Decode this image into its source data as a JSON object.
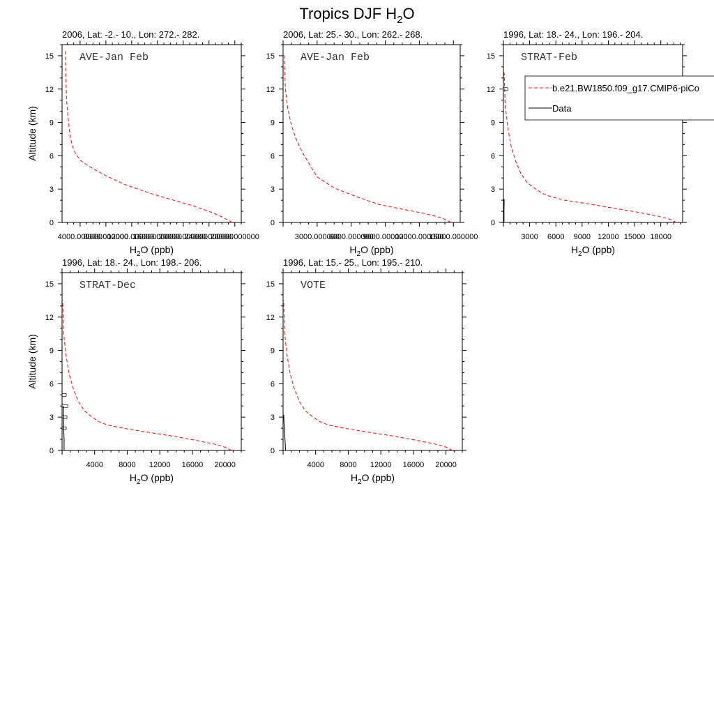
{
  "figure": {
    "title_main": "Tropics DJF H",
    "title_sub": "2",
    "title_tail": "O"
  },
  "legend": {
    "model_label": "b.e21.BW1850.f09_g17.CMIP6-piCo",
    "data_label": "Data"
  },
  "colors": {
    "model": "#e8211f",
    "data": "#000000",
    "axis": "#000000"
  },
  "chart_data": [
    {
      "type": "line",
      "title": "2006, Lat: -2.- 10., Lon: 272.- 282.",
      "campaign": "AVE-Jan Feb",
      "xlabel_main": "H",
      "xlabel_sub": "2",
      "xlabel_tail": "O (ppb)",
      "ylabel": "Altitude (km)",
      "xlim": [
        1200,
        29000
      ],
      "ylim": [
        0,
        16
      ],
      "yticks": [
        0,
        3,
        6,
        9,
        12,
        15
      ],
      "xticks": [
        4000,
        8000,
        12000,
        16000,
        20000,
        24000,
        28000
      ],
      "xtick_labels": [
        "4000.000000",
        "8000.000000",
        "12000.000000",
        "16000.000000",
        "20000.000000",
        "24000.000000",
        "28000.000000"
      ],
      "series": [
        {
          "name": "b.e21.BW1850.f09_g17.CMIP6-piCo",
          "style": "dashed",
          "x": [
            27600,
            26000,
            24000,
            21500,
            18500,
            15000,
            11000,
            8000,
            5500,
            4000,
            3200,
            2800,
            2500,
            2300,
            2100,
            1900,
            1800,
            1700
          ],
          "y": [
            0,
            0.5,
            1.0,
            1.5,
            2.0,
            2.6,
            3.4,
            4.2,
            5.0,
            5.6,
            6.3,
            6.9,
            7.6,
            8.5,
            9.7,
            11.0,
            13.0,
            15.5
          ]
        }
      ]
    },
    {
      "type": "line",
      "title": "2006, Lat: 25.- 30., Lon: 262.- 268.",
      "campaign": "AVE-Jan Feb",
      "xlabel_main": "H",
      "xlabel_sub": "2",
      "xlabel_tail": "O (ppb)",
      "ylabel": "",
      "xlim": [
        0,
        15600
      ],
      "ylim": [
        0,
        16
      ],
      "yticks": [
        0,
        3,
        6,
        9,
        12,
        15
      ],
      "xticks": [
        3000,
        6000,
        9000,
        12000,
        15000
      ],
      "xtick_labels": [
        "3000.000000",
        "6000.000000",
        "9000.000000",
        "12000.000000",
        "15000.000000"
      ],
      "series": [
        {
          "name": "b.e21.BW1850.f09_g17.CMIP6-piCo",
          "style": "dashed",
          "x": [
            14800,
            14000,
            12500,
            10500,
            8500,
            6500,
            4500,
            3000,
            2400,
            1700,
            1100,
            700,
            400,
            200,
            100
          ],
          "y": [
            0,
            0.4,
            0.8,
            1.2,
            1.6,
            2.3,
            3.1,
            4.1,
            5.1,
            6.3,
            7.6,
            8.9,
            10.3,
            12.0,
            15.2
          ]
        }
      ]
    },
    {
      "type": "line",
      "title": "1996, Lat: 18.- 24., Lon: 196.- 204.",
      "campaign": "STRAT-Feb",
      "xlabel_main": "H",
      "xlabel_sub": "2",
      "xlabel_tail": "O (ppb)",
      "ylabel": "",
      "xlim": [
        0,
        20500
      ],
      "ylim": [
        0,
        16
      ],
      "yticks": [
        0,
        3,
        6,
        9,
        12,
        15
      ],
      "xticks": [
        3000,
        6000,
        9000,
        12000,
        15000,
        18000
      ],
      "xtick_labels": [
        "3000",
        "6000",
        "9000",
        "12000",
        "15000",
        "18000"
      ],
      "series": [
        {
          "name": "b.e21.BW1850.f09_g17.CMIP6-piCo",
          "style": "dashed",
          "x": [
            19800,
            19000,
            17500,
            15500,
            12500,
            9500,
            7000,
            5500,
            4500,
            3500,
            2700,
            2000,
            1400,
            900,
            500,
            200,
            80
          ],
          "y": [
            0,
            0.3,
            0.6,
            0.9,
            1.3,
            1.7,
            2.0,
            2.3,
            2.6,
            3.1,
            3.6,
            4.4,
            5.5,
            6.8,
            8.5,
            10.5,
            13.5
          ]
        },
        {
          "name": "Data",
          "style": "solid",
          "x": [
            60,
            60,
            80,
            80
          ],
          "y": [
            0,
            1.0,
            1.8,
            2.1
          ]
        }
      ],
      "data_boxes": [
        {
          "x": 500,
          "y": 12
        }
      ]
    },
    {
      "type": "line",
      "title": "1996, Lat: 18.- 24., Lon: 198.- 206.",
      "campaign": "STRAT-Dec",
      "xlabel_main": "H",
      "xlabel_sub": "2",
      "xlabel_tail": "O (ppb)",
      "ylabel": "Altitude (km)",
      "xlim": [
        0,
        22000
      ],
      "ylim": [
        0,
        16
      ],
      "yticks": [
        0,
        3,
        6,
        9,
        12,
        15
      ],
      "xticks": [
        4000,
        8000,
        12000,
        16000,
        20000
      ],
      "xtick_labels": [
        "4000",
        "8000",
        "12000",
        "16000",
        "20000"
      ],
      "series": [
        {
          "name": "b.e21.BW1850.f09_g17.CMIP6-piCo",
          "style": "dashed",
          "x": [
            20800,
            20000,
            18500,
            16500,
            13500,
            10000,
            7500,
            5500,
            4500,
            3500,
            2700,
            2000,
            1400,
            900,
            500,
            200,
            80
          ],
          "y": [
            0,
            0.3,
            0.6,
            0.9,
            1.3,
            1.7,
            2.0,
            2.3,
            2.6,
            3.1,
            3.6,
            4.4,
            5.5,
            6.8,
            8.5,
            10.5,
            13.5
          ]
        },
        {
          "name": "Data",
          "style": "solid",
          "x": [
            250,
            250,
            200,
            180,
            150
          ],
          "y": [
            0,
            1.0,
            2.0,
            3.0,
            4.0
          ]
        }
      ],
      "data_boxes": [
        {
          "x": 600,
          "y": 3
        },
        {
          "x": 700,
          "y": 4
        },
        {
          "x": 250,
          "y": 5
        },
        {
          "x": 250,
          "y": 2
        }
      ]
    },
    {
      "type": "line",
      "title": "1996, Lat: 15.- 25., Lon: 195.- 210.",
      "campaign": "VOTE",
      "xlabel_main": "H",
      "xlabel_sub": "2",
      "xlabel_tail": "O (ppb)",
      "ylabel": "",
      "xlim": [
        0,
        22000
      ],
      "ylim": [
        0,
        16
      ],
      "yticks": [
        0,
        3,
        6,
        9,
        12,
        15
      ],
      "xticks": [
        4000,
        8000,
        12000,
        16000,
        20000
      ],
      "xtick_labels": [
        "4000",
        "8000",
        "12000",
        "16000",
        "20000"
      ],
      "series": [
        {
          "name": "b.e21.BW1850.f09_g17.CMIP6-piCo",
          "style": "dashed",
          "x": [
            20800,
            20000,
            18500,
            16500,
            13500,
            10000,
            7500,
            5500,
            4500,
            3500,
            2700,
            2000,
            1400,
            900,
            500,
            200,
            80
          ],
          "y": [
            0,
            0.3,
            0.6,
            0.9,
            1.3,
            1.7,
            2.0,
            2.3,
            2.6,
            3.1,
            3.6,
            4.4,
            5.5,
            6.8,
            8.5,
            10.5,
            13.5
          ]
        },
        {
          "name": "Data",
          "style": "solid",
          "x": [
            300,
            250,
            180,
            120,
            80
          ],
          "y": [
            0,
            0.8,
            1.6,
            2.4,
            3.2
          ]
        }
      ]
    }
  ]
}
